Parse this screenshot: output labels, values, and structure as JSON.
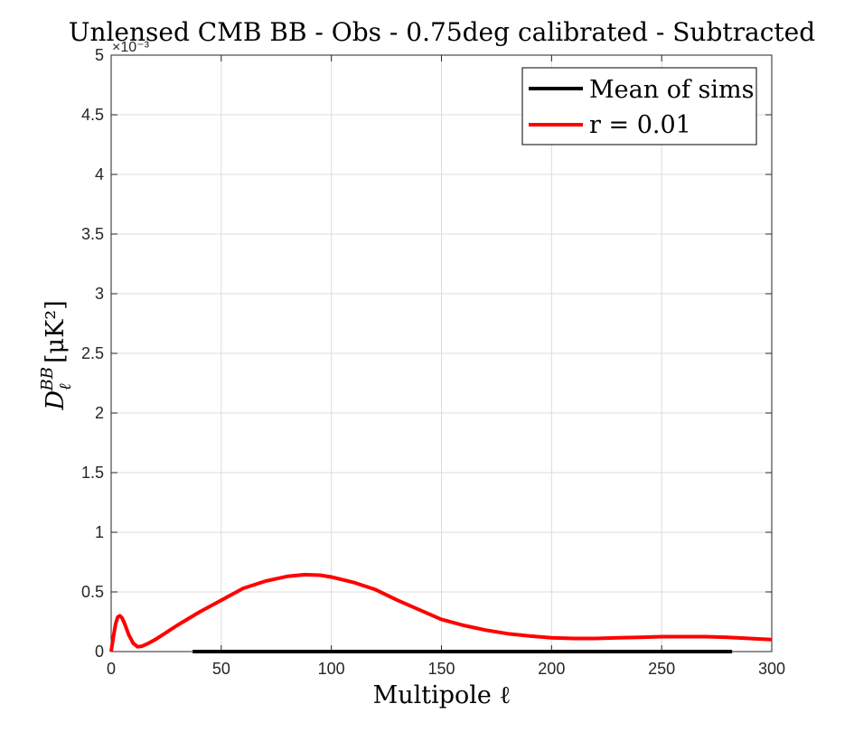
{
  "chart_data": {
    "type": "line",
    "title": "Unlensed CMB BB - Obs - 0.75deg calibrated - Subtracted",
    "xlabel": "Multipole ℓ",
    "ylabel_main": "D",
    "ylabel_sub": "ℓ",
    "ylabel_sup": "BB",
    "ylabel_units": "[μK²]",
    "y_exponent": "×10⁻³",
    "xlim": [
      0,
      300
    ],
    "ylim": [
      0,
      5
    ],
    "xticks": [
      0,
      50,
      100,
      150,
      200,
      250,
      300
    ],
    "xtick_labels": [
      "0",
      "50",
      "100",
      "150",
      "200",
      "250",
      "300"
    ],
    "yticks": [
      0,
      0.5,
      1,
      1.5,
      2,
      2.5,
      3,
      3.5,
      4,
      4.5,
      5
    ],
    "ytick_labels": [
      "0",
      "0.5",
      "1",
      "1.5",
      "2",
      "2.5",
      "3",
      "3.5",
      "4",
      "4.5",
      "5"
    ],
    "grid": true,
    "legend_position": "top-right",
    "series": [
      {
        "name": "Mean of sims",
        "color": "#000000",
        "x": [
          37,
          100,
          150,
          200,
          250,
          282
        ],
        "y": [
          0,
          0,
          0,
          0,
          0,
          0
        ]
      },
      {
        "name": "r = 0.01",
        "color": "#ff0000",
        "x": [
          0,
          1,
          2,
          3,
          4,
          5,
          6,
          8,
          10,
          12,
          14,
          17,
          20,
          25,
          30,
          40,
          50,
          60,
          70,
          80,
          88,
          95,
          100,
          110,
          120,
          130,
          140,
          150,
          160,
          170,
          180,
          190,
          200,
          210,
          220,
          230,
          240,
          250,
          260,
          270,
          280,
          290,
          300
        ],
        "y": [
          0.0,
          0.12,
          0.23,
          0.29,
          0.3,
          0.28,
          0.24,
          0.14,
          0.07,
          0.04,
          0.045,
          0.07,
          0.1,
          0.16,
          0.22,
          0.33,
          0.43,
          0.53,
          0.59,
          0.63,
          0.645,
          0.64,
          0.625,
          0.58,
          0.52,
          0.43,
          0.35,
          0.27,
          0.22,
          0.18,
          0.15,
          0.13,
          0.115,
          0.11,
          0.11,
          0.115,
          0.12,
          0.125,
          0.125,
          0.125,
          0.12,
          0.11,
          0.1
        ]
      }
    ]
  }
}
